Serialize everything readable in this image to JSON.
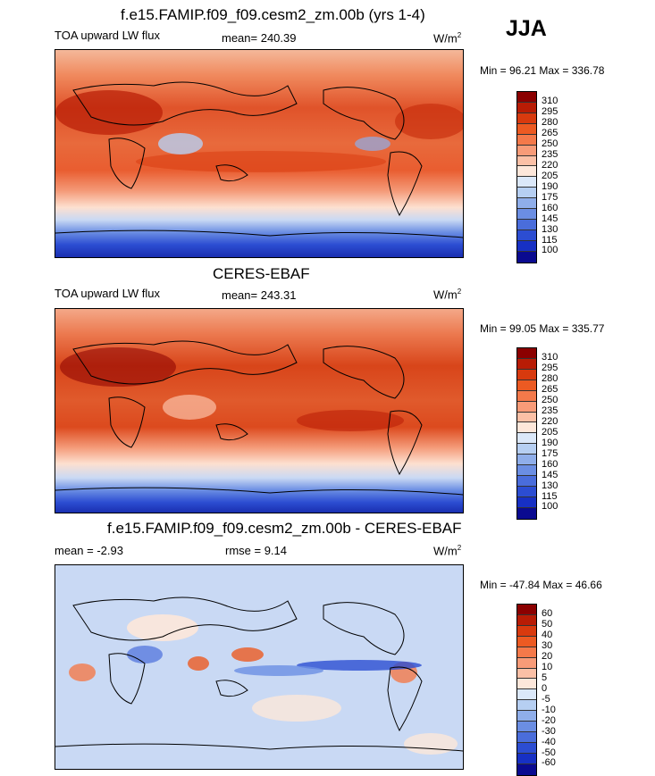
{
  "season": "JJA",
  "panels": [
    {
      "title": "f.e15.FAMIP.f09_f09.cesm2_zm.00b (yrs 1-4)",
      "left_label": "TOA upward LW flux",
      "center_label": "mean= 240.39",
      "units": "W/m",
      "units_sup": "2",
      "minmax": "Min =  96.21 Max = 336.78",
      "colorbar": {
        "labels": [
          "310",
          "295",
          "280",
          "265",
          "250",
          "235",
          "220",
          "205",
          "190",
          "175",
          "160",
          "145",
          "130",
          "115",
          "100"
        ],
        "colors": [
          "#8b0000",
          "#b81c05",
          "#d83a0e",
          "#ec5a22",
          "#f4794a",
          "#f89b78",
          "#fbc0a6",
          "#fde7da",
          "#dbe8f9",
          "#b6cff2",
          "#8faeea",
          "#6b8ee3",
          "#4a6ddb",
          "#2c4dd2",
          "#1730c4",
          "#0a0a90"
        ]
      },
      "map_kind": "model"
    },
    {
      "title": "CERES-EBAF",
      "left_label": "TOA upward LW flux",
      "center_label": "mean= 243.31",
      "units": "W/m",
      "units_sup": "2",
      "minmax": "Min =  99.05 Max = 335.77",
      "colorbar": {
        "labels": [
          "310",
          "295",
          "280",
          "265",
          "250",
          "235",
          "220",
          "205",
          "190",
          "175",
          "160",
          "145",
          "130",
          "115",
          "100"
        ],
        "colors": [
          "#8b0000",
          "#b81c05",
          "#d83a0e",
          "#ec5a22",
          "#f4794a",
          "#f89b78",
          "#fbc0a6",
          "#fde7da",
          "#dbe8f9",
          "#b6cff2",
          "#8faeea",
          "#6b8ee3",
          "#4a6ddb",
          "#2c4dd2",
          "#1730c4",
          "#0a0a90"
        ]
      },
      "map_kind": "obs"
    },
    {
      "title": "f.e15.FAMIP.f09_f09.cesm2_zm.00b - CERES-EBAF",
      "left_label": "mean =  -2.93",
      "center_label": "rmse =   9.14",
      "units": "W/m",
      "units_sup": "2",
      "minmax": "Min = -47.84 Max =  46.66",
      "colorbar": {
        "labels": [
          "60",
          "50",
          "40",
          "30",
          "20",
          "10",
          "5",
          "0",
          "-5",
          "-10",
          "-20",
          "-30",
          "-40",
          "-50",
          "-60"
        ],
        "colors": [
          "#8b0000",
          "#b81c05",
          "#d83a0e",
          "#ec5a22",
          "#f4794a",
          "#f89b78",
          "#fbc0a6",
          "#fde7da",
          "#dbe8f9",
          "#b6cff2",
          "#8faeea",
          "#6b8ee3",
          "#4a6ddb",
          "#2c4dd2",
          "#1730c4",
          "#0a0a90"
        ]
      },
      "map_kind": "diff"
    }
  ]
}
